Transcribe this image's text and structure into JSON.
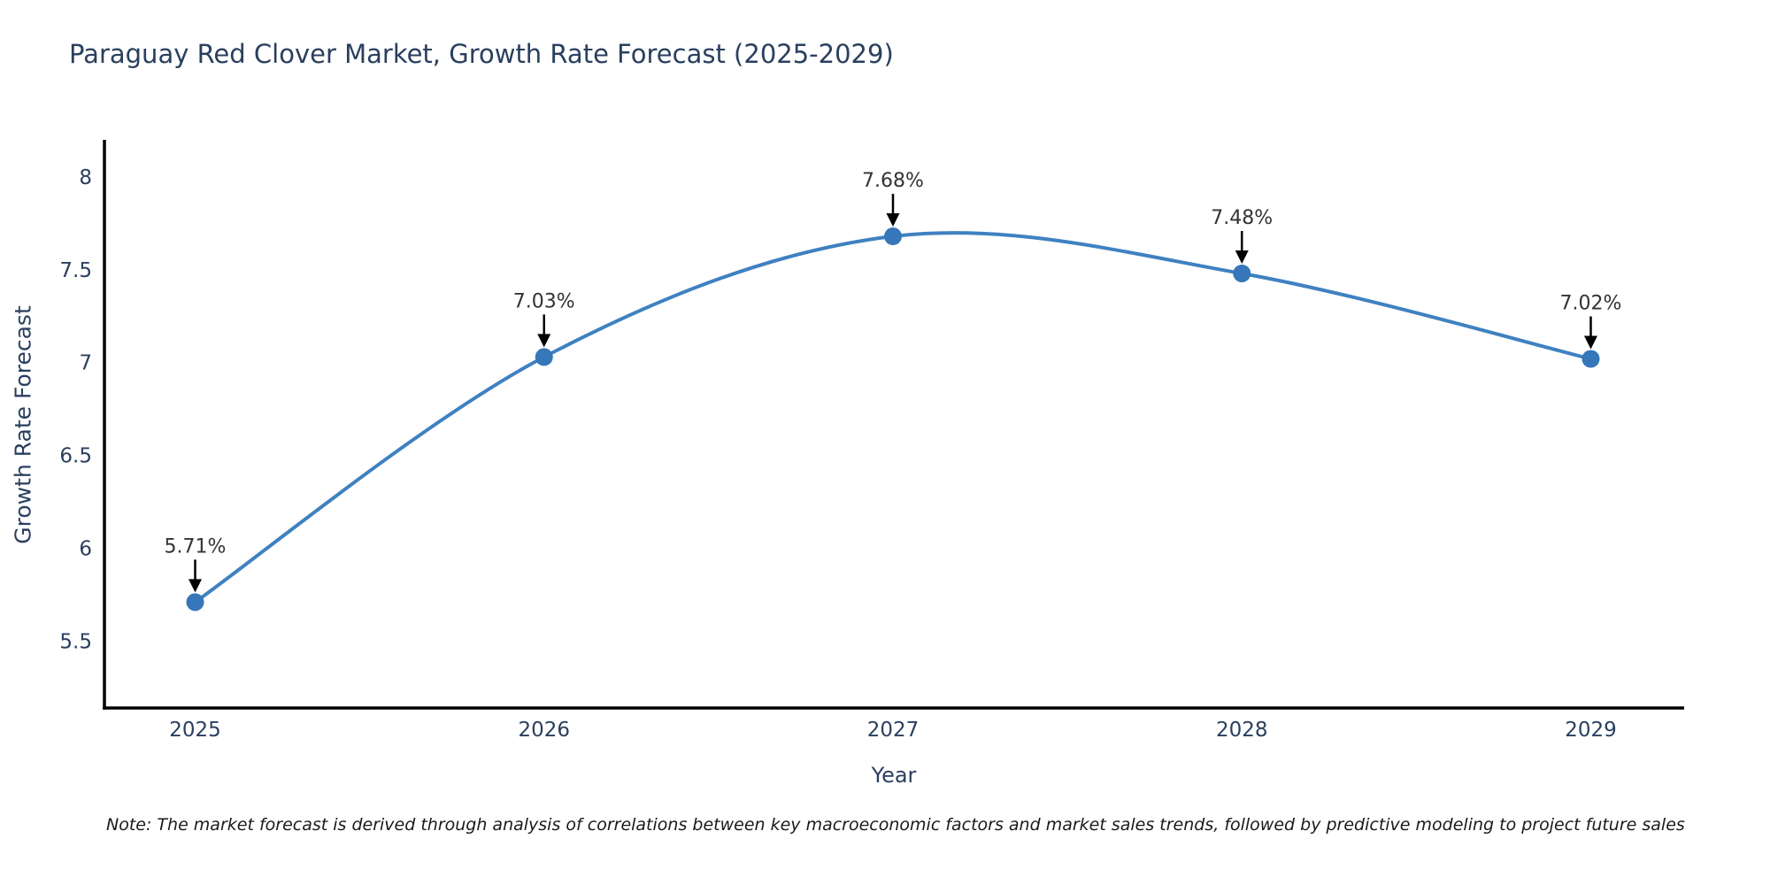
{
  "chart_data": {
    "type": "line",
    "title": "Paraguay Red Clover Market, Growth Rate Forecast (2025-2029)",
    "xlabel": "Year",
    "ylabel": "Growth Rate Forecast",
    "x": [
      2025,
      2026,
      2027,
      2028,
      2029
    ],
    "values": [
      5.71,
      7.03,
      7.68,
      7.48,
      7.02
    ],
    "point_labels": [
      "5.71%",
      "7.03%",
      "7.68%",
      "7.48%",
      "7.02%"
    ],
    "xticks": [
      2025,
      2026,
      2027,
      2028,
      2029
    ],
    "yticks": [
      5.5,
      6,
      6.5,
      7,
      7.5,
      8
    ],
    "xlim": [
      2024.74,
      2029.26
    ],
    "ylim": [
      5.14,
      8.19
    ],
    "grid": false,
    "legend": "none",
    "line_shape": "spline",
    "line_color": "#3f81c1",
    "marker_color": "#3577b8",
    "axis_color": "#000000",
    "tick_label_color": "#2a3f5f",
    "annotation_text_color": "#333333",
    "annotation_arrow_color": "#000000",
    "background_color": "#ffffff"
  },
  "note": "Note: The market forecast is derived through analysis of correlations between key macroeconomic factors and market sales trends, followed by predictive modeling to project future sales"
}
